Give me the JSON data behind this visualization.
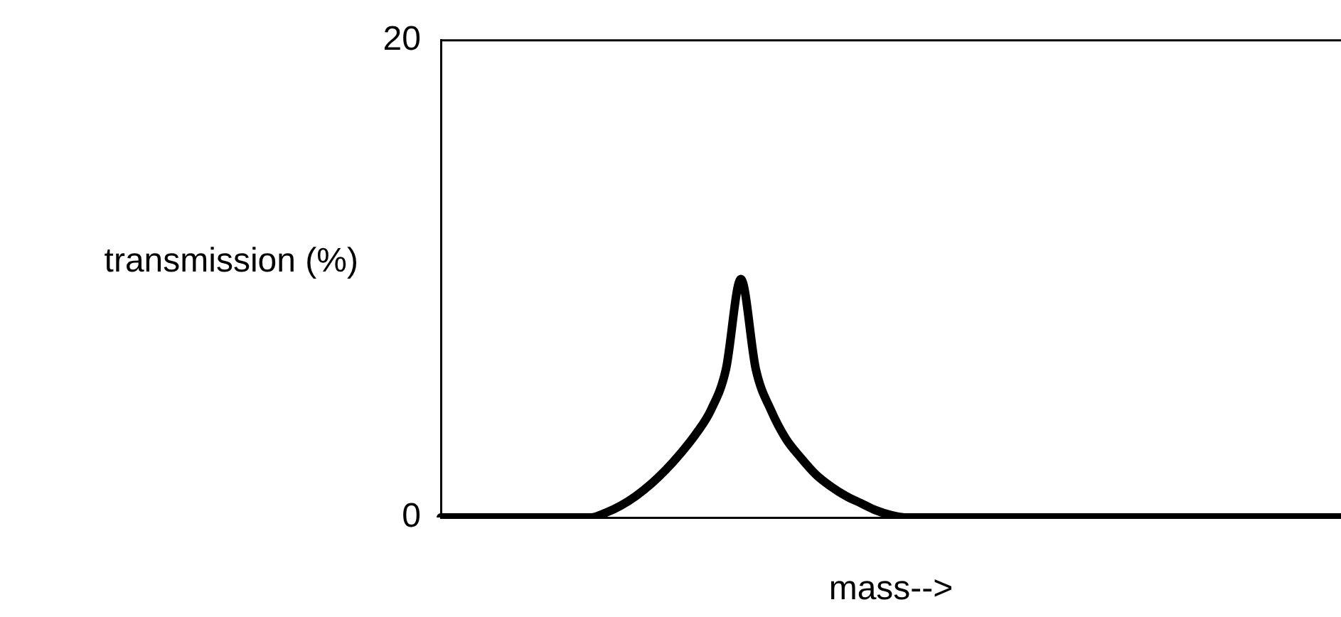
{
  "chart_data": {
    "type": "line",
    "ylabel": "transmission (%)",
    "xlabel": "mass-->",
    "ylim": [
      0,
      20
    ],
    "yticks": [
      0,
      20
    ],
    "tick_labels": "y",
    "color": "#000000",
    "categories": [
      null,
      null,
      null,
      null,
      null,
      null,
      null,
      null,
      null,
      null,
      null,
      null,
      null,
      null,
      null,
      null,
      null,
      null,
      null,
      null,
      null,
      null,
      null,
      null,
      null,
      null,
      null,
      null,
      null,
      null,
      null,
      null,
      null,
      null,
      null,
      null,
      null,
      null,
      null,
      null,
      null,
      null,
      null,
      null,
      null,
      null,
      null,
      null,
      null,
      null,
      null,
      null,
      null,
      null,
      null,
      null,
      null,
      null,
      null,
      null,
      null
    ],
    "values": [
      0,
      0,
      0,
      0,
      0,
      0,
      0,
      0,
      0,
      0,
      0,
      0.2,
      0.5,
      0.9,
      1.4,
      2.0,
      2.7,
      3.5,
      4.5,
      6.2,
      10,
      6.2,
      4.5,
      3.3,
      2.5,
      1.8,
      1.3,
      0.9,
      0.6,
      0.3,
      0.1,
      0,
      0,
      0,
      0,
      0,
      0,
      0,
      0,
      0,
      0,
      0,
      0,
      0,
      0,
      0,
      0,
      0,
      0,
      0,
      0,
      0,
      0,
      0,
      0,
      0,
      0,
      0,
      0,
      0,
      0
    ]
  }
}
